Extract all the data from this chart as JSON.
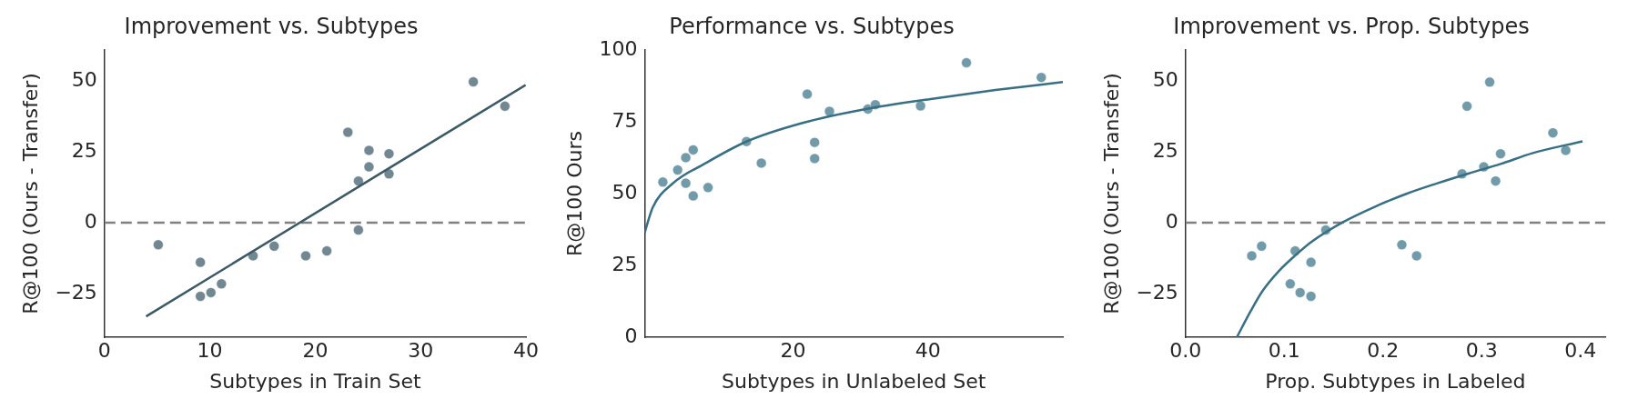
{
  "chart_data": [
    {
      "type": "scatter",
      "title": "Improvement vs. Subtypes",
      "xlabel": "Subtypes in Train Set",
      "ylabel": "R@100 (Ours - Transfer)",
      "xlim": [
        0,
        40
      ],
      "xticks": [
        0,
        10,
        20,
        30,
        40
      ],
      "ylim": [
        -40.5,
        61
      ],
      "yticks": [
        {
          "value": -25,
          "label": "−25"
        },
        0,
        25,
        50
      ],
      "grid": false,
      "legend": false,
      "ref_lines": [
        {
          "axis": "y",
          "value": 0,
          "color": "#808080",
          "line_style": "dashed"
        }
      ],
      "series": [
        {
          "marker": "circle",
          "color": "#5d7884",
          "x": [
            5.1,
            9.1,
            9.1,
            10.1,
            11.1,
            14.1,
            16.1,
            19.1,
            21.1,
            23.1,
            24.1,
            24.1,
            25.1,
            25.1,
            27,
            27,
            35,
            38
          ],
          "values": [
            -7.8,
            -14,
            -26,
            -24.7,
            -21.6,
            -11.7,
            -8.3,
            -11.7,
            -10,
            31.9,
            14.7,
            -2.6,
            25.5,
            19.7,
            24.3,
            17.2,
            49.7,
            41.1
          ]
        },
        {
          "type": "line",
          "marker": "none",
          "color": "#3b5966",
          "x": [
            3.95,
            39.96
          ],
          "values": [
            -33.1,
            48.6
          ]
        }
      ]
    },
    {
      "type": "scatter",
      "title": "Performance vs. Subtypes",
      "xlabel": "Subtypes in Unlabeled Set",
      "ylabel": "R@100 Ours",
      "xlim": [
        -2,
        60
      ],
      "xticks": [
        20,
        40
      ],
      "ylim": [
        0,
        100
      ],
      "yticks": [
        0,
        25,
        50,
        75,
        100
      ],
      "grid": false,
      "legend": false,
      "series": [
        {
          "marker": "circle",
          "color": "#5f8d9e",
          "x": [
            0.7,
            2.9,
            4.1,
            4.1,
            5.2,
            5.2,
            7.4,
            13.1,
            15.3,
            22.1,
            23.2,
            23.2,
            25.4,
            31.1,
            32.2,
            38.9,
            45.7,
            56.8
          ],
          "values": [
            54,
            58.2,
            62.5,
            53.6,
            65.2,
            49.2,
            52.1,
            68.1,
            60.6,
            84.6,
            67.8,
            62.2,
            78.6,
            79.4,
            80.9,
            80.5,
            95.5,
            90.4
          ]
        },
        {
          "type": "line",
          "marker": "none",
          "color": "#376f85",
          "x": [
            -2,
            -0.8,
            2.1,
            6.9,
            13.1,
            21.3,
            30.8,
            40.4,
            50,
            60
          ],
          "values": [
            36.4,
            45.2,
            53.4,
            60.4,
            68.1,
            74.5,
            79.4,
            82.9,
            86,
            88.8
          ]
        }
      ]
    },
    {
      "type": "scatter",
      "title": "Improvement vs. Prop. Subtypes",
      "xlabel": "Prop. Subtypes in Labeled",
      "ylabel": "R@100 (Ours - Transfer)",
      "xlim": [
        0,
        0.425
      ],
      "xticks": [
        {
          "value": 0,
          "label": "0.0"
        },
        0.1,
        0.2,
        0.3,
        0.4
      ],
      "ylim": [
        -40.5,
        61
      ],
      "yticks": [
        {
          "value": -25,
          "label": "−25"
        },
        0,
        25,
        50
      ],
      "grid": false,
      "legend": false,
      "ref_lines": [
        {
          "axis": "y",
          "value": 0,
          "color": "#808080",
          "line_style": "dashed"
        }
      ],
      "series": [
        {
          "marker": "circle",
          "color": "#5f8d9e",
          "x": [
            0.067,
            0.077,
            0.106,
            0.116,
            0.127,
            0.111,
            0.127,
            0.142,
            0.219,
            0.234,
            0.285,
            0.308,
            0.28,
            0.302,
            0.319,
            0.314,
            0.372,
            0.385
          ],
          "values": [
            -11.7,
            -8.3,
            -21.6,
            -24.7,
            -26,
            -10,
            -14,
            -2.6,
            -7.8,
            -11.7,
            41.1,
            49.6,
            17.2,
            19.7,
            24.3,
            14.7,
            31.7,
            25.5
          ]
        },
        {
          "type": "line",
          "marker": "none",
          "color": "#376f85",
          "x": [
            0.052,
            0.066,
            0.078,
            0.095,
            0.111,
            0.127,
            0.159,
            0.191,
            0.223,
            0.255,
            0.287,
            0.319,
            0.351,
            0.402
          ],
          "values": [
            -40.4,
            -31.2,
            -24.1,
            -16.9,
            -11.6,
            -6.9,
            0.1,
            5.5,
            10.1,
            13.9,
            17.4,
            20.7,
            24.5,
            28.7
          ]
        }
      ]
    }
  ]
}
